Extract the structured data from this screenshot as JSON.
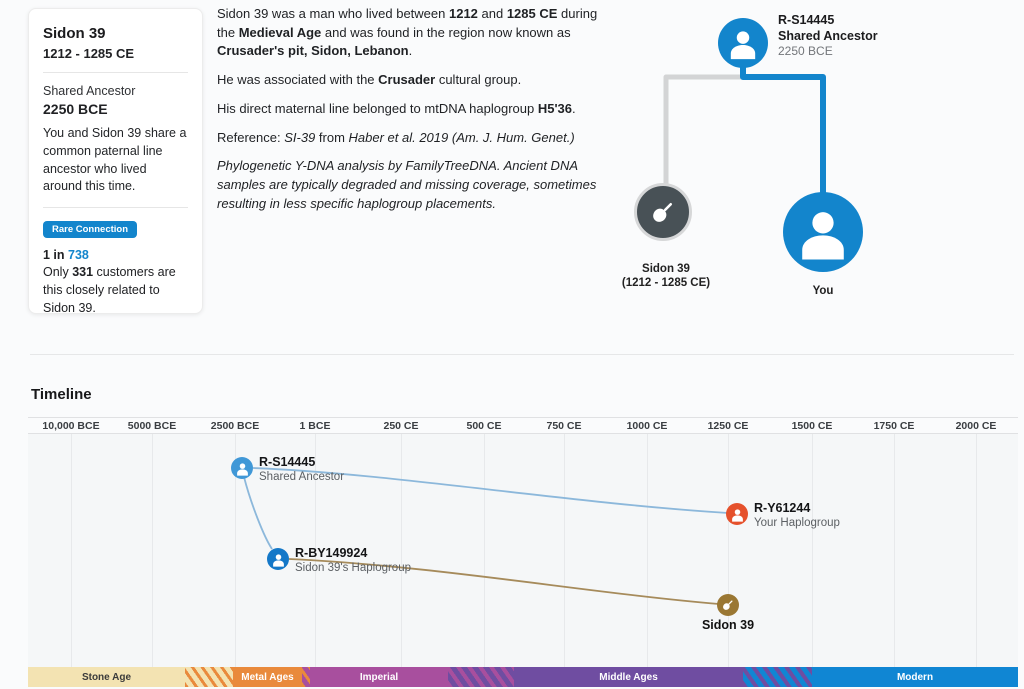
{
  "colors": {
    "primary_blue": "#1385cc",
    "light_blue_node": "#4098d7",
    "dark_blue_node": "#1478c8",
    "orange_node": "#e5512c",
    "brown_node": "#9a7733",
    "gray_node": "#485156",
    "blue_curve": "#8cb8db",
    "tan_curve": "#a68b5b",
    "era_stone": "#f3e3b2",
    "era_metal": "#e98a3c",
    "era_imperial": "#a84f9e",
    "era_middle": "#6f4da1",
    "era_modern": "#1086d3"
  },
  "card": {
    "title": "Sidon 39",
    "dates": "1212 - 1285 CE",
    "shared_ancestor_label": "Shared Ancestor",
    "shared_ancestor_date": "2250 BCE",
    "description": "You and Sidon 39 share a common paternal line ancestor who lived around this time.",
    "badge": "Rare Connection",
    "ratio": [
      {
        "t": "1 in ",
        "b": true
      },
      {
        "t": "738",
        "b": true,
        "c": "#1385cc"
      }
    ],
    "closeness": [
      {
        "t": "Only "
      },
      {
        "t": "331",
        "b": true
      },
      {
        "t": " customers are this closely related to Sidon 39."
      }
    ]
  },
  "about": {
    "p1": [
      {
        "t": "Sidon 39 was a man who lived between "
      },
      {
        "t": "1212",
        "b": true
      },
      {
        "t": " and "
      },
      {
        "t": "1285 CE",
        "b": true
      },
      {
        "t": " during the "
      },
      {
        "t": "Medieval Age",
        "b": true
      },
      {
        "t": " and was found in the region now known as "
      },
      {
        "t": "Crusader's pit, Sidon, Lebanon",
        "b": true
      },
      {
        "t": "."
      }
    ],
    "p2": [
      {
        "t": "He was associated with the "
      },
      {
        "t": "Crusader",
        "b": true
      },
      {
        "t": " cultural group."
      }
    ],
    "p3": [
      {
        "t": "His direct maternal line belonged to mtDNA haplogroup "
      },
      {
        "t": "H5'36",
        "b": true
      },
      {
        "t": "."
      }
    ],
    "p4": [
      {
        "t": "Reference: "
      },
      {
        "t": "SI-39",
        "i": true
      },
      {
        "t": " from "
      },
      {
        "t": "Haber et al. 2019 (Am. J. Hum. Genet.)",
        "i": true
      }
    ],
    "p5": [
      {
        "t": "Phylogenetic Y-DNA analysis by FamilyTreeDNA. Ancient DNA samples are typically degraded and missing coverage, sometimes resulting in less specific haplogroup placements.",
        "i": true
      }
    ]
  },
  "tree": {
    "ancestor": {
      "haplogroup": "R-S14445",
      "label": "Shared Ancestor",
      "date": "2250 BCE"
    },
    "ancient": {
      "name": "Sidon 39",
      "dates": "(1212 - 1285 CE)"
    },
    "you": {
      "label": "You"
    }
  },
  "timeline": {
    "heading": "Timeline",
    "ticks": [
      "10,000 BCE",
      "5000 BCE",
      "2500 BCE",
      "1 BCE",
      "250 CE",
      "500 CE",
      "750 CE",
      "1000 CE",
      "1250 CE",
      "1500 CE",
      "1750 CE",
      "2000 CE"
    ],
    "nodes": {
      "shared": {
        "title": "R-S14445",
        "subtitle": "Shared Ancestor"
      },
      "sidon_hg": {
        "title": "R-BY149924",
        "subtitle": "Sidon 39's Haplogroup"
      },
      "your_hg": {
        "title": "R-Y61244",
        "subtitle": "Your Haplogroup"
      },
      "sidon": {
        "title": "Sidon 39"
      }
    },
    "eras": [
      "Stone Age",
      "Metal Ages",
      "Imperial",
      "Middle Ages",
      "Modern"
    ]
  }
}
